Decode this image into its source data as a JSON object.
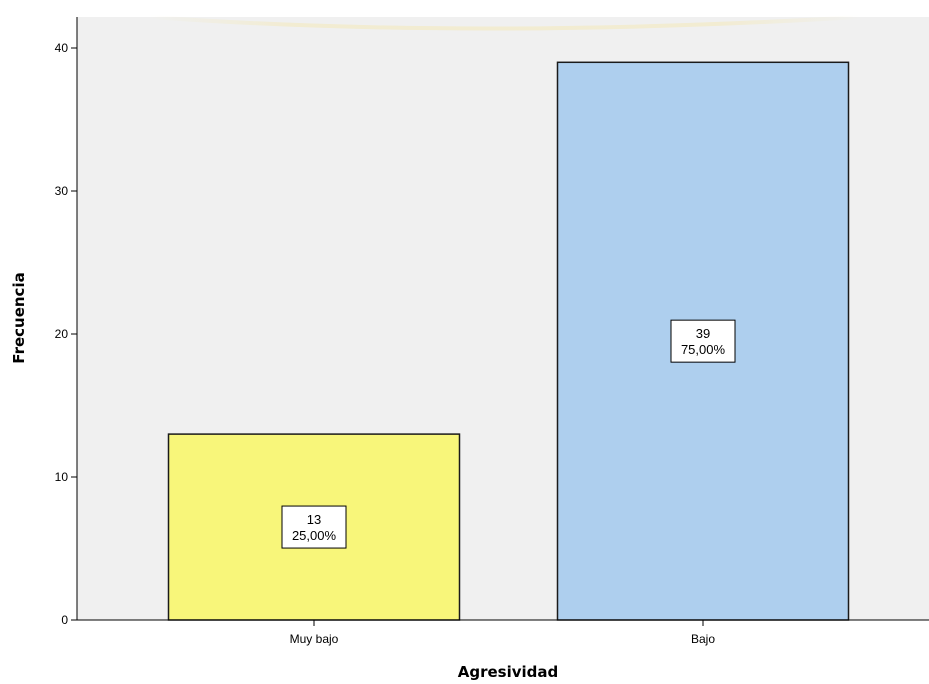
{
  "chart_data": {
    "type": "bar",
    "title": "",
    "xlabel": "Agresividad",
    "ylabel": "Frecuencia",
    "categories": [
      "Muy bajo",
      "Bajo"
    ],
    "values": [
      13,
      39
    ],
    "percent_labels": [
      "25,00%",
      "75,00%"
    ],
    "colors": [
      "#f8f67a",
      "#aecfee"
    ],
    "ylim": [
      0,
      40
    ],
    "yticks": [
      0,
      10,
      20,
      30,
      40
    ],
    "grid": false,
    "plot_background": "#f0f0f0"
  }
}
